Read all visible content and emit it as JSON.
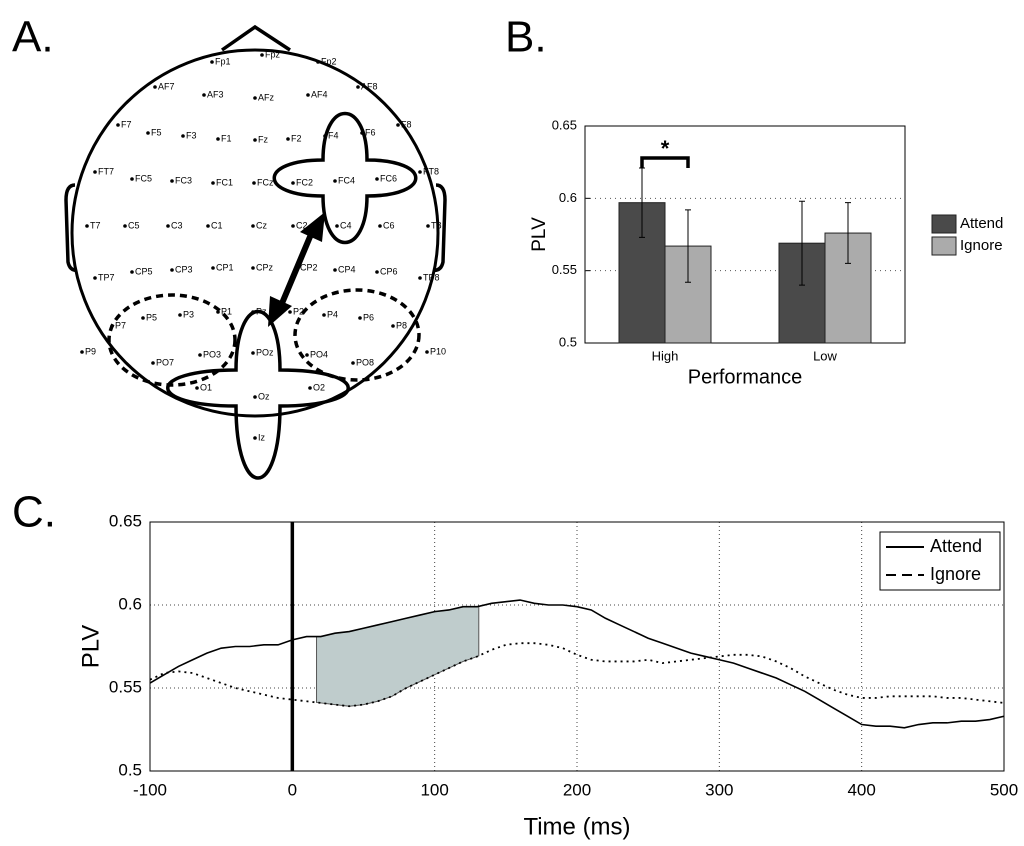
{
  "electrode_map": {
    "panel_label": "A.",
    "electrodes": [
      "Fp1",
      "Fpz",
      "Fp2",
      "AF7",
      "AF3",
      "AFz",
      "AF4",
      "AF8",
      "F7",
      "F5",
      "F3",
      "F1",
      "Fz",
      "F2",
      "F4",
      "F6",
      "F8",
      "FT7",
      "FC5",
      "FC3",
      "FC1",
      "FCz",
      "FC2",
      "FC4",
      "FC6",
      "FT8",
      "T7",
      "C5",
      "C3",
      "C1",
      "Cz",
      "C2",
      "C4",
      "C6",
      "T8",
      "TP7",
      "CP5",
      "CP3",
      "CP1",
      "CPz",
      "CP2",
      "CP4",
      "CP6",
      "TP8",
      "P9",
      "P7",
      "P5",
      "P3",
      "P1",
      "Pz",
      "P2",
      "P4",
      "P6",
      "P8",
      "P10",
      "PO7",
      "PO3",
      "POz",
      "PO4",
      "PO8",
      "O1",
      "Oz",
      "O2",
      "Iz"
    ]
  },
  "chart_data": [
    {
      "type": "bar",
      "panel_label": "B.",
      "x_label": "Performance",
      "y_label": "PLV",
      "categories": [
        "High",
        "Low"
      ],
      "series": [
        {
          "name": "Attend",
          "color": "#4a4a4a",
          "values": [
            0.597,
            0.569
          ],
          "errors": [
            0.024,
            0.029
          ]
        },
        {
          "name": "Ignore",
          "color": "#ababab",
          "values": [
            0.567,
            0.576
          ],
          "errors": [
            0.025,
            0.021
          ]
        }
      ],
      "ylim": [
        0.5,
        0.65
      ],
      "yticks": [
        0.5,
        0.55,
        0.6,
        0.65
      ],
      "grid": true,
      "legend": "outside right",
      "annotation": "*"
    },
    {
      "type": "line",
      "panel_label": "C.",
      "x_label": "Time (ms)",
      "y_label": "PLV",
      "x": [
        -100,
        -90,
        -80,
        -70,
        -60,
        -50,
        -40,
        -30,
        -20,
        -10,
        0,
        10,
        20,
        30,
        40,
        50,
        60,
        70,
        80,
        90,
        100,
        110,
        120,
        130,
        140,
        150,
        160,
        170,
        180,
        190,
        200,
        210,
        220,
        230,
        240,
        250,
        260,
        270,
        280,
        290,
        300,
        310,
        320,
        330,
        340,
        350,
        360,
        370,
        380,
        390,
        400,
        410,
        420,
        430,
        440,
        450,
        460,
        470,
        480,
        490,
        500
      ],
      "series": [
        {
          "name": "Attend",
          "color": "#000000",
          "style": "solid",
          "values": [
            0.553,
            0.558,
            0.563,
            0.567,
            0.571,
            0.574,
            0.575,
            0.575,
            0.576,
            0.576,
            0.579,
            0.581,
            0.581,
            0.583,
            0.584,
            0.586,
            0.588,
            0.59,
            0.592,
            0.594,
            0.596,
            0.597,
            0.599,
            0.599,
            0.601,
            0.602,
            0.603,
            0.601,
            0.6,
            0.6,
            0.599,
            0.597,
            0.592,
            0.588,
            0.584,
            0.58,
            0.577,
            0.574,
            0.571,
            0.569,
            0.567,
            0.565,
            0.562,
            0.559,
            0.556,
            0.552,
            0.548,
            0.543,
            0.538,
            0.533,
            0.528,
            0.527,
            0.527,
            0.526,
            0.528,
            0.529,
            0.529,
            0.53,
            0.53,
            0.531,
            0.533
          ]
        },
        {
          "name": "Ignore",
          "color": "#000000",
          "style": "dashed",
          "values": [
            0.555,
            0.559,
            0.56,
            0.559,
            0.556,
            0.553,
            0.55,
            0.548,
            0.546,
            0.544,
            0.543,
            0.542,
            0.541,
            0.54,
            0.539,
            0.54,
            0.542,
            0.545,
            0.55,
            0.554,
            0.558,
            0.562,
            0.566,
            0.569,
            0.573,
            0.576,
            0.577,
            0.577,
            0.576,
            0.574,
            0.57,
            0.567,
            0.566,
            0.566,
            0.566,
            0.567,
            0.565,
            0.566,
            0.567,
            0.568,
            0.569,
            0.57,
            0.57,
            0.569,
            0.566,
            0.562,
            0.557,
            0.553,
            0.549,
            0.546,
            0.544,
            0.544,
            0.545,
            0.545,
            0.545,
            0.545,
            0.544,
            0.544,
            0.543,
            0.542,
            0.541
          ]
        }
      ],
      "xlim": [
        -100,
        500
      ],
      "xticks": [
        -100,
        0,
        100,
        200,
        300,
        400,
        500
      ],
      "ylim": [
        0.5,
        0.65
      ],
      "yticks": [
        0.5,
        0.55,
        0.6,
        0.65
      ],
      "grid": true,
      "legend": "upper right",
      "vline": 0,
      "highlight_x": [
        17,
        131
      ],
      "highlight_color": "#bfcccc"
    }
  ]
}
